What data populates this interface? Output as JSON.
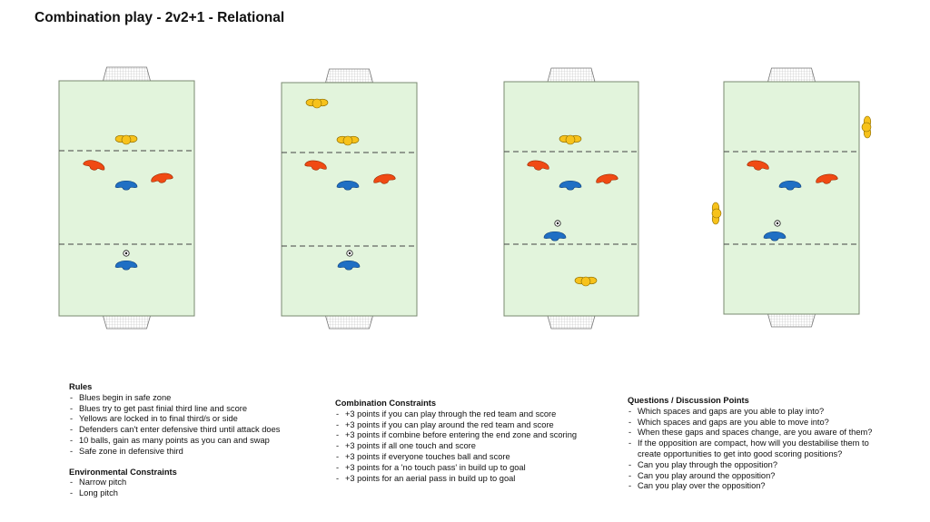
{
  "title": "Combination play - 2v2+1 - Relational",
  "colors": {
    "pitch": "#e2f4dc",
    "pitch_border": "#7a8a70",
    "yellow": "#f7c21b",
    "red": "#f04a14",
    "blue": "#1f6fc4"
  },
  "rules": {
    "heading": "Rules",
    "items": [
      "Blues begin in safe zone",
      "Blues try to get past finial third line and score",
      "Yellows are locked in to final third/s or side",
      "Defenders can't enter defensive third until attack does",
      "10 balls, gain as many points as you can and swap",
      "Safe zone in defensive third"
    ]
  },
  "environmental": {
    "heading": "Environmental Constraints",
    "items": [
      "Narrow pitch",
      "Long pitch"
    ]
  },
  "combination": {
    "heading": "Combination Constraints",
    "items": [
      "+3 points if you can play through the red team and score",
      "+3 points if you can play around the red team and score",
      "+3 points if combine before entering the end zone and scoring",
      "+3 points if all one touch and score",
      "+3 points if everyone touches ball and score",
      "+3 points for a 'no touch pass' in build up to goal",
      "+3 points for an aerial pass in build up to goal"
    ]
  },
  "questions": {
    "heading": "Questions / Discussion Points",
    "items": [
      "Which spaces and gaps are you able to play into?",
      "Which spaces and gaps are you able to move into?",
      "When these gaps and spaces change, are you aware of them?",
      "If the opposition are compact, how will you destabilise them to create opportunities to get into good scoring positions?",
      "Can you play through the opposition?",
      "Can you play around the opposition?",
      "Can you play over the opposition?"
    ]
  }
}
